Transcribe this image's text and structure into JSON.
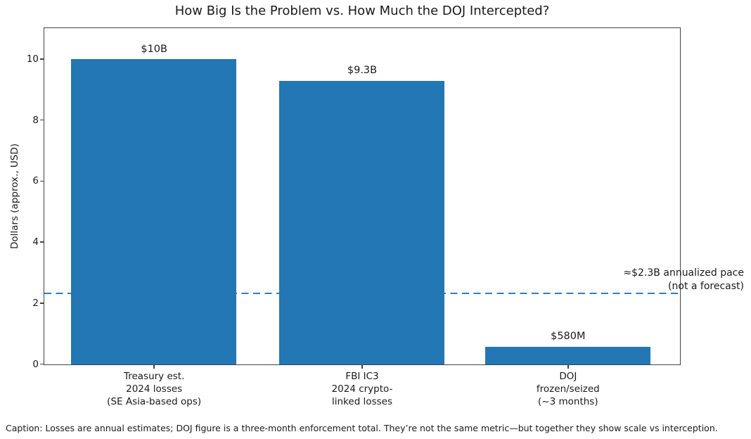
{
  "chart_data": {
    "type": "bar",
    "title": "How Big Is the Problem vs. How Much the DOJ Intercepted?",
    "ylabel": "Dollars (approx., USD)",
    "xlabel": "",
    "ylim": [
      0,
      11
    ],
    "yticks": [
      0,
      2,
      4,
      6,
      8,
      10
    ],
    "categories": [
      "Treasury est.\n2024 losses\n(SE Asia-based ops)",
      "FBI IC3\n2024 crypto-\nlinked losses",
      "DOJ\nfrozen/seized\n(~3 months)"
    ],
    "values": [
      10,
      9.3,
      0.58
    ],
    "bar_value_labels": [
      "$10B",
      "$9.3B",
      "$580M"
    ],
    "bar_color": "#2277b4",
    "grid": false,
    "legend": null,
    "reference_line": {
      "value": 2.3,
      "style": "dashed",
      "color": "#2e7ebc",
      "label": "≈$2.3B annualized pace\n(not a forecast)"
    },
    "caption": "Caption: Losses are annual estimates; DOJ figure is a three-month enforcement total. They’re not the same metric—but together they show scale vs interception."
  }
}
